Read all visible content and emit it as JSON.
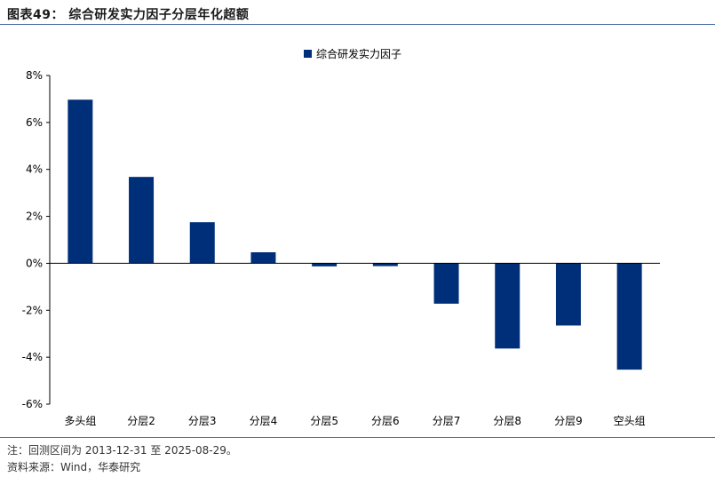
{
  "figure": {
    "title": "图表49：  综合研发实力因子分层年化超额",
    "note": "注：回测区间为 2013-12-31 至 2025-08-29。",
    "source": "资料来源：Wind，华泰研究"
  },
  "chart_data": {
    "type": "bar",
    "categories": [
      "多头组",
      "分层2",
      "分层3",
      "分层4",
      "分层5",
      "分层6",
      "分层7",
      "分层8",
      "分层9",
      "空头组"
    ],
    "series": [
      {
        "name": "综合研发实力因子",
        "values": [
          6.97,
          3.68,
          1.75,
          0.47,
          -0.13,
          -0.12,
          -1.72,
          -3.63,
          -2.65,
          -4.53
        ],
        "color": "#002f7a"
      }
    ],
    "yticks": [
      "8%",
      "6%",
      "4%",
      "2%",
      "0%",
      "-2%",
      "-4%",
      "-6%"
    ],
    "ylim": [
      -6,
      8
    ],
    "legend": "top-center",
    "grid": false
  }
}
